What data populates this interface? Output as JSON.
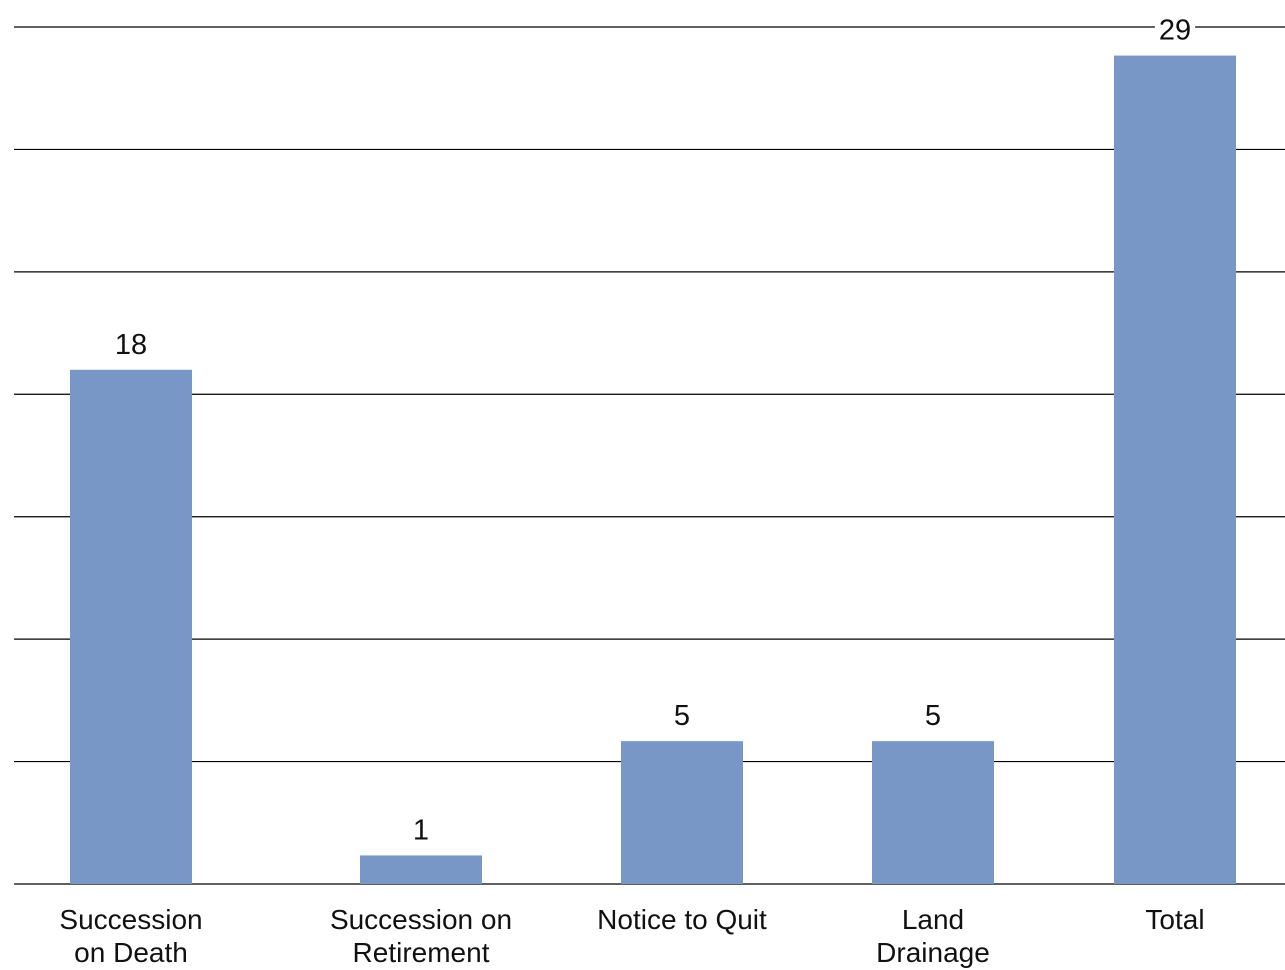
{
  "chart_data": {
    "type": "bar",
    "title": "",
    "xlabel": "",
    "ylabel": "",
    "categories": [
      [
        "Succession",
        "on Death"
      ],
      [
        "Succession on",
        "Retirement"
      ],
      [
        "Notice to Quit"
      ],
      [
        "Land",
        "Drainage"
      ],
      [
        "Total"
      ]
    ],
    "values": [
      18,
      1,
      5,
      5,
      29
    ],
    "value_labels": [
      "18",
      "1",
      "5",
      "5",
      "29"
    ],
    "ylim": [
      0,
      30
    ],
    "grid": true,
    "legend": "none",
    "colors": {
      "bar": "#7896c6",
      "grid": "#000000",
      "text": "#111111"
    }
  }
}
